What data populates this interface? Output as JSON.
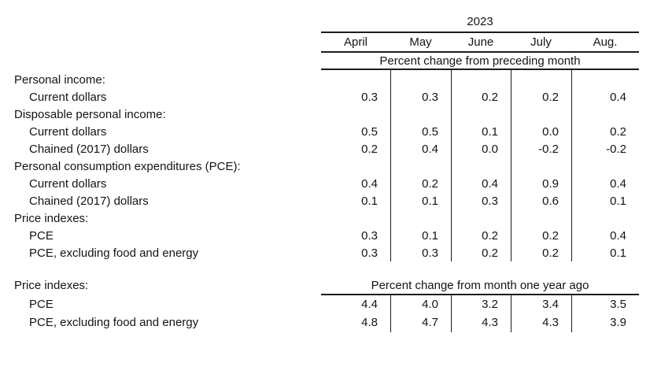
{
  "colors": {
    "background": "#ffffff",
    "text": "#141414",
    "rule": "#1c1c1c"
  },
  "header": {
    "year": "2023",
    "months": [
      "April",
      "May",
      "June",
      "July",
      "Aug."
    ]
  },
  "section1": {
    "spanner": "Percent change from preceding month",
    "rows": [
      {
        "label": "Personal income:"
      },
      {
        "label": "Current dollars",
        "values": [
          "0.3",
          "0.3",
          "0.2",
          "0.2",
          "0.4"
        ]
      },
      {
        "label": "Disposable personal income:"
      },
      {
        "label": "Current dollars",
        "values": [
          "0.5",
          "0.5",
          "0.1",
          "0.0",
          "0.2"
        ]
      },
      {
        "label": "Chained (2017) dollars",
        "values": [
          "0.2",
          "0.4",
          "0.0",
          "-0.2",
          "-0.2"
        ]
      },
      {
        "label": "Personal consumption expenditures (PCE):"
      },
      {
        "label": "Current dollars",
        "values": [
          "0.4",
          "0.2",
          "0.4",
          "0.9",
          "0.4"
        ]
      },
      {
        "label": "Chained (2017) dollars",
        "values": [
          "0.1",
          "0.1",
          "0.3",
          "0.6",
          "0.1"
        ]
      },
      {
        "label": "Price indexes:"
      },
      {
        "label": "PCE",
        "values": [
          "0.3",
          "0.1",
          "0.2",
          "0.2",
          "0.4"
        ]
      },
      {
        "label": "PCE, excluding food and energy",
        "values": [
          "0.3",
          "0.3",
          "0.2",
          "0.2",
          "0.1"
        ]
      }
    ]
  },
  "section2": {
    "label": "Price indexes:",
    "spanner": "Percent change from month one year ago",
    "rows": [
      {
        "label": "PCE",
        "values": [
          "4.4",
          "4.0",
          "3.2",
          "3.4",
          "3.5"
        ]
      },
      {
        "label": "PCE, excluding food and energy",
        "values": [
          "4.8",
          "4.7",
          "4.3",
          "4.3",
          "3.9"
        ]
      }
    ]
  }
}
